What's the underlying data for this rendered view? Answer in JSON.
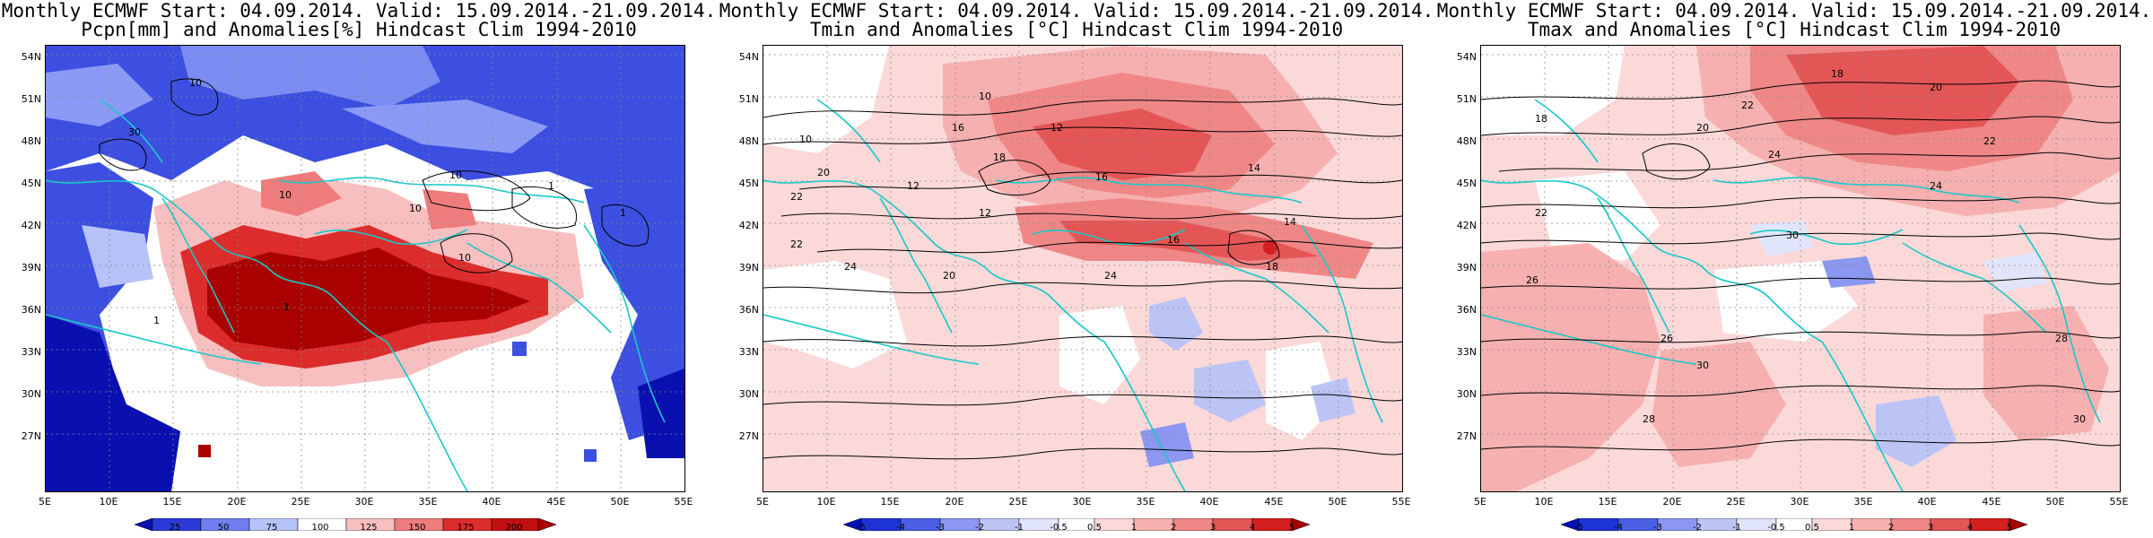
{
  "panels": [
    {
      "title_line1": "Monthly ECMWF Start: 04.09.2014. Valid: 15.09.2014.-21.09.2014.",
      "title_line2": "Pcpn[mm] and Anomalies[%] Hindcast Clim 1994-2010",
      "map_type": "precipitation-anomaly",
      "lat_labels": [
        "54N",
        "51N",
        "48N",
        "45N",
        "42N",
        "39N",
        "36N",
        "33N",
        "30N",
        "27N"
      ],
      "lon_labels": [
        "5E",
        "10E",
        "15E",
        "20E",
        "25E",
        "30E",
        "35E",
        "40E",
        "45E",
        "50E",
        "55E"
      ],
      "colorbar_labels": [
        "25",
        "50",
        "75",
        "100",
        "125",
        "150",
        "175",
        "200"
      ],
      "colorbar_colors": [
        "#0a10b0",
        "#2c3ad8",
        "#6f7ff0",
        "#b7c2f8",
        "#ffffff",
        "#f7bfbf",
        "#ee7c7c",
        "#dd2c2c",
        "#a90000"
      ],
      "contour_labels": [
        "10",
        "30",
        "10",
        "1",
        "10",
        "10",
        "1",
        "10",
        "1",
        "1"
      ]
    },
    {
      "title_line1": "Monthly ECMWF Start: 04.09.2014. Valid: 15.09.2014.-21.09.2014.",
      "title_line2": "Tmin and Anomalies [°C] Hindcast Clim 1994-2010",
      "map_type": "tmin-anomaly",
      "lat_labels": [
        "54N",
        "51N",
        "48N",
        "45N",
        "42N",
        "39N",
        "36N",
        "33N",
        "30N",
        "27N"
      ],
      "lon_labels": [
        "5E",
        "10E",
        "15E",
        "20E",
        "25E",
        "30E",
        "35E",
        "40E",
        "45E",
        "50E",
        "55E"
      ],
      "colorbar_labels": [
        "-5",
        "-4",
        "-3",
        "-2",
        "-1",
        "-0.5",
        "0.5",
        "1",
        "2",
        "3",
        "4",
        "5"
      ],
      "colorbar_colors": [
        "#0010b8",
        "#1d33d6",
        "#4a5fe6",
        "#8b97f0",
        "#bcc4f6",
        "#e1e5fb",
        "#ffffff",
        "#fbd9d9",
        "#f6b0b0",
        "#ef8787",
        "#e45656",
        "#d41f1f",
        "#a80000"
      ],
      "contour_labels": [
        "10",
        "12",
        "10",
        "16",
        "14",
        "18",
        "12",
        "16",
        "20",
        "22",
        "24",
        "16",
        "18",
        "22",
        "20",
        "24",
        "12",
        "14"
      ]
    },
    {
      "title_line1": "Monthly ECMWF Start: 04.09.2014. Valid: 15.09.2014.-21.09.2014.",
      "title_line2": "Tmax and Anomalies [°C] Hindcast Clim 1994-2010",
      "map_type": "tmax-anomaly",
      "lat_labels": [
        "54N",
        "51N",
        "48N",
        "45N",
        "42N",
        "39N",
        "36N",
        "33N",
        "30N",
        "27N"
      ],
      "lon_labels": [
        "5E",
        "10E",
        "15E",
        "20E",
        "25E",
        "30E",
        "35E",
        "40E",
        "45E",
        "50E",
        "55E"
      ],
      "colorbar_labels": [
        "-5",
        "-4",
        "-3",
        "-2",
        "-1",
        "-0.5",
        "0.5",
        "1",
        "2",
        "3",
        "4",
        "5"
      ],
      "colorbar_colors": [
        "#0010b8",
        "#1d33d6",
        "#4a5fe6",
        "#8b97f0",
        "#bcc4f6",
        "#e1e5fb",
        "#ffffff",
        "#fbd9d9",
        "#f6b0b0",
        "#ef8787",
        "#e45656",
        "#d41f1f",
        "#a80000"
      ],
      "contour_labels": [
        "18",
        "20",
        "22",
        "18",
        "20",
        "24",
        "22",
        "24",
        "22",
        "26",
        "30",
        "28",
        "26",
        "30",
        "28",
        "30"
      ]
    }
  ]
}
